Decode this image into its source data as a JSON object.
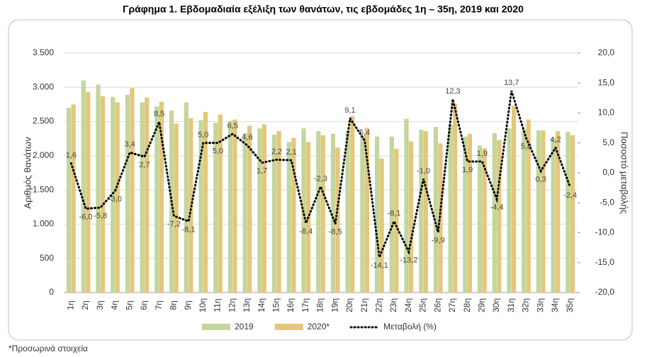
{
  "chart_data": {
    "type": "bar-line",
    "title": "Γράφημα 1.  Εβδομαδιαία εξέλιξη των θανάτων, τις εβδομάδες 1η – 35η, 2019 και 2020",
    "y_label": "Αριθμός θανάτων",
    "y2_label": "Ποσοστό μεταβολής",
    "footnote": "*Προσωρινά στοιχεία",
    "categories": [
      "1η",
      "2η",
      "3η",
      "4η",
      "5η",
      "6η",
      "7η",
      "8η",
      "9η",
      "10η",
      "11η",
      "12η",
      "13η",
      "14η",
      "15η",
      "16η",
      "17η",
      "18η",
      "19η",
      "20η",
      "21η",
      "22η",
      "23η",
      "24η",
      "25η",
      "26η",
      "27η",
      "28η",
      "29η",
      "30η",
      "31η",
      "32η",
      "33η",
      "34η",
      "35η"
    ],
    "series": [
      {
        "name": "2019",
        "color": "#c3d69b",
        "values": [
          2700,
          3100,
          3040,
          2860,
          2890,
          2780,
          2720,
          2660,
          2780,
          2520,
          2480,
          2510,
          2330,
          2400,
          2310,
          2200,
          2400,
          2360,
          2320,
          2360,
          2290,
          2280,
          2280,
          2540,
          2380,
          2420,
          2450,
          2280,
          2150,
          2330,
          2400,
          2390,
          2370,
          2260,
          2350
        ]
      },
      {
        "name": "2020*",
        "color": "#e4c77b",
        "values": [
          2750,
          2930,
          2870,
          2780,
          2990,
          2850,
          2790,
          2470,
          2550,
          2640,
          2600,
          2530,
          2440,
          2460,
          2360,
          2260,
          2200,
          2300,
          2120,
          2580,
          2410,
          1960,
          2100,
          2210,
          2360,
          2180,
          2760,
          2320,
          2110,
          2230,
          2730,
          2530,
          2370,
          2360,
          2300
        ]
      },
      {
        "name": "Μεταβολή (%)",
        "color": "#000000",
        "axis": "y2",
        "values": [
          1.6,
          -6.0,
          -5.8,
          -3.0,
          3.4,
          2.7,
          8.5,
          -7.2,
          -8.1,
          5.0,
          5.0,
          6.5,
          4.6,
          1.7,
          2.2,
          2.1,
          -8.4,
          -2.3,
          -8.5,
          9.1,
          5.4,
          -14.1,
          -8.1,
          -13.2,
          -1.0,
          -9.9,
          12.3,
          1.9,
          1.9,
          -4.4,
          13.7,
          5.8,
          0.3,
          4.2,
          -2.4
        ],
        "value_labels": [
          "1,6",
          "-6,0",
          "-5,8",
          "-3,0",
          "3,4",
          "2,7",
          "8,5",
          "-7,2",
          "-8,1",
          "5,0",
          "5,0",
          "6,5",
          "4,6",
          "1,7",
          "2,2",
          "2,1",
          "-8,4",
          "-2,3",
          "-8,5",
          "9,1",
          "5,4",
          "-14,1",
          "-8,1",
          "-13,2",
          "-1,0",
          "-9,9",
          "12,3",
          "1,9",
          "1,9",
          "-4,4",
          "13,7",
          "5,8",
          "0,3",
          "4,2",
          "-2,4"
        ]
      }
    ],
    "ylim": [
      0,
      3500
    ],
    "yticks": [
      0,
      {
        "value": 500,
        "label": "500"
      },
      {
        "value": 1000,
        "label": "1.000"
      },
      {
        "value": 1500,
        "label": "1.500"
      },
      {
        "value": 2000,
        "label": "2.000"
      },
      {
        "value": 2500,
        "label": "2.500"
      },
      {
        "value": 3000,
        "label": "3.000"
      },
      {
        "value": 3500,
        "label": "3.500"
      }
    ],
    "y2lim": [
      -20,
      20
    ],
    "y2ticks": [
      {
        "value": -20,
        "label": "-20,0"
      },
      {
        "value": -15,
        "label": "-15,0"
      },
      {
        "value": -10,
        "label": "-10,0"
      },
      {
        "value": -5,
        "label": "-5,0"
      },
      {
        "value": 0,
        "label": "0,0"
      },
      {
        "value": 5,
        "label": "5,0"
      },
      {
        "value": 10,
        "label": "10,0"
      },
      {
        "value": 15,
        "label": "15,0"
      },
      {
        "value": 20,
        "label": "20,0"
      }
    ],
    "grid": true
  }
}
